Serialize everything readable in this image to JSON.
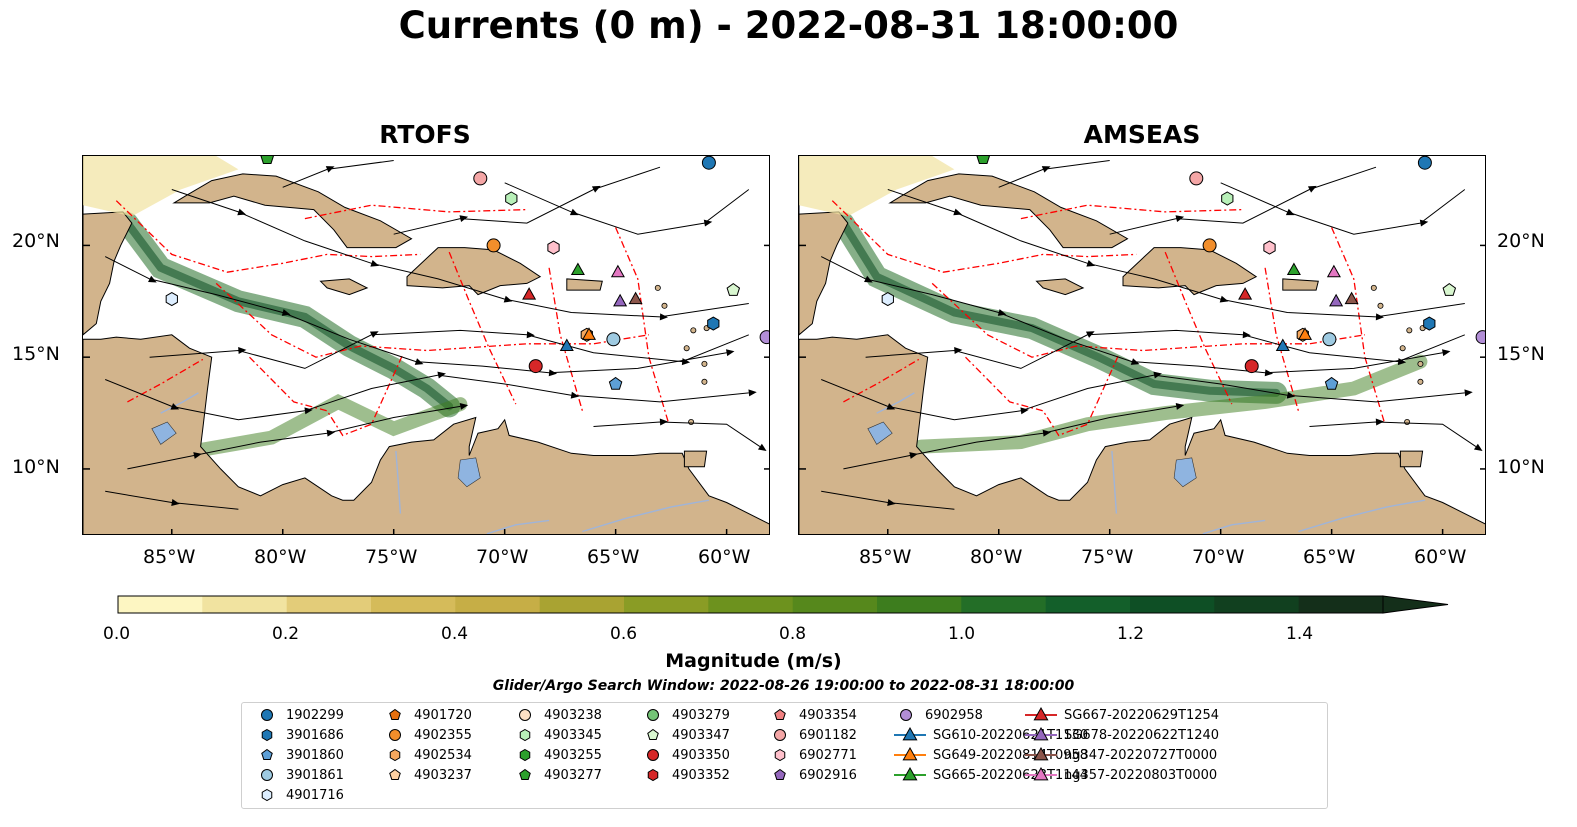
{
  "title": "Currents (0 m) - 2022-08-31 18:00:00",
  "panels": [
    {
      "title": "RTOFS",
      "model": "rtofs"
    },
    {
      "title": "AMSEAS",
      "model": "amseas"
    }
  ],
  "map": {
    "lon_range": [
      -89,
      -58
    ],
    "lat_range": [
      7,
      24
    ],
    "lon_ticks": [
      "85°W",
      "80°W",
      "75°W",
      "70°W",
      "65°W",
      "60°W"
    ],
    "lat_ticks": [
      "20°N",
      "15°N",
      "10°N"
    ],
    "colors": {
      "land": "#d2b48c",
      "ocean_mask": "#8fb4e0",
      "eez_line": "#ff0000",
      "streamline": "#000000",
      "river": "#9fb4d9"
    }
  },
  "colorbar": {
    "label": "Magnitude (m/s)",
    "range": [
      0,
      1.5
    ],
    "extend": "max",
    "ticks": [
      "0.0",
      "0.2",
      "0.4",
      "0.6",
      "0.8",
      "1.0",
      "1.2",
      "1.4"
    ],
    "colors": [
      "#fdf6c2",
      "#f1e3a0",
      "#e3cc79",
      "#d5bb5a",
      "#c6ae46",
      "#a9a332",
      "#8a9c25",
      "#6d921e",
      "#56881c",
      "#3d7d1e",
      "#236e27",
      "#135f2a",
      "#0e4f25",
      "#11401f",
      "#142f1a"
    ]
  },
  "search_window": "Glider/Argo Search Window: 2022-08-26 19:00:00 to 2022-08-31 18:00:00",
  "legend": [
    {
      "label": "1902299",
      "marker": "circle",
      "color": "#1f77b4",
      "lon": -60.8,
      "lat": 23.7
    },
    {
      "label": "3901686",
      "marker": "hexagon",
      "color": "#1f77b4",
      "lon": -60.6,
      "lat": 16.5
    },
    {
      "label": "3901860",
      "marker": "pentagon",
      "color": "#5d9fd6",
      "lon": -65.0,
      "lat": 13.8
    },
    {
      "label": "3901861",
      "marker": "circle",
      "color": "#9ecae1",
      "lon": -65.1,
      "lat": 15.8
    },
    {
      "label": "4901716",
      "marker": "hexagon",
      "color": "#ddeeff",
      "lon": -85.0,
      "lat": 17.6
    },
    {
      "label": "4901720",
      "marker": "pentagon",
      "color": "#e6700f",
      "lon": null,
      "lat": null
    },
    {
      "label": "4902355",
      "marker": "circle",
      "color": "#f28e2b",
      "lon": -70.5,
      "lat": 20.0
    },
    {
      "label": "4902534",
      "marker": "hexagon",
      "color": "#f7a85e",
      "lon": -66.3,
      "lat": 16.0
    },
    {
      "label": "4903237",
      "marker": "pentagon",
      "color": "#fdd0a2",
      "lon": null,
      "lat": null
    },
    {
      "label": "4903238",
      "marker": "circle",
      "color": "#fde0c5",
      "lon": null,
      "lat": null
    },
    {
      "label": "4903345",
      "marker": "hexagon",
      "color": "#b8f0b8",
      "lon": -69.7,
      "lat": 22.1
    },
    {
      "label": "4903255",
      "marker": "hexagon",
      "color": "#2ca02c",
      "lon": null,
      "lat": null
    },
    {
      "label": "4903277",
      "marker": "pentagon",
      "color": "#2ca02c",
      "lon": -80.7,
      "lat": 23.9
    },
    {
      "label": "4903279",
      "marker": "circle",
      "color": "#74c476",
      "lon": null,
      "lat": null
    },
    {
      "label": "4903347",
      "marker": "pentagon",
      "color": "#d9f7d0",
      "lon": -59.7,
      "lat": 18.0
    },
    {
      "label": "4903350",
      "marker": "circle",
      "color": "#d62728",
      "lon": -68.6,
      "lat": 14.6
    },
    {
      "label": "4903352",
      "marker": "hexagon",
      "color": "#d62728",
      "lon": null,
      "lat": null
    },
    {
      "label": "4903354",
      "marker": "pentagon",
      "color": "#f08080",
      "lon": null,
      "lat": null
    },
    {
      "label": "6901182",
      "marker": "circle",
      "color": "#f4a6a6",
      "lon": -71.1,
      "lat": 23.0
    },
    {
      "label": "6902771",
      "marker": "hexagon",
      "color": "#ffc0cb",
      "lon": -67.8,
      "lat": 19.9
    },
    {
      "label": "6902916",
      "marker": "pentagon",
      "color": "#9467bd",
      "lon": null,
      "lat": null
    },
    {
      "label": "6902958",
      "marker": "circle",
      "color": "#b28ed6",
      "lon": -58.2,
      "lat": 15.9
    },
    {
      "label": "SG610-20220621T1130",
      "marker": "triangle",
      "color": "#1f77b4",
      "lon": -67.2,
      "lat": 15.5
    },
    {
      "label": "SG649-20220814T0958",
      "marker": "triangle",
      "color": "#ff7f0e",
      "lon": -66.2,
      "lat": 16.0
    },
    {
      "label": "SG665-20220623T1144",
      "marker": "triangle",
      "color": "#2ca02c",
      "lon": -66.7,
      "lat": 18.9
    },
    {
      "label": "SG667-20220629T1254",
      "marker": "triangle",
      "color": "#d62728",
      "lon": -68.9,
      "lat": 17.8
    },
    {
      "label": "SG678-20220622T1240",
      "marker": "triangle",
      "color": "#9467bd",
      "lon": -64.8,
      "lat": 17.5
    },
    {
      "label": "ng347-20220727T0000",
      "marker": "triangle",
      "color": "#8c564b",
      "lon": -64.1,
      "lat": 17.6
    },
    {
      "label": "ng357-20220803T0000",
      "marker": "triangle",
      "color": "#e377c2",
      "lon": -64.9,
      "lat": 18.8
    }
  ]
}
